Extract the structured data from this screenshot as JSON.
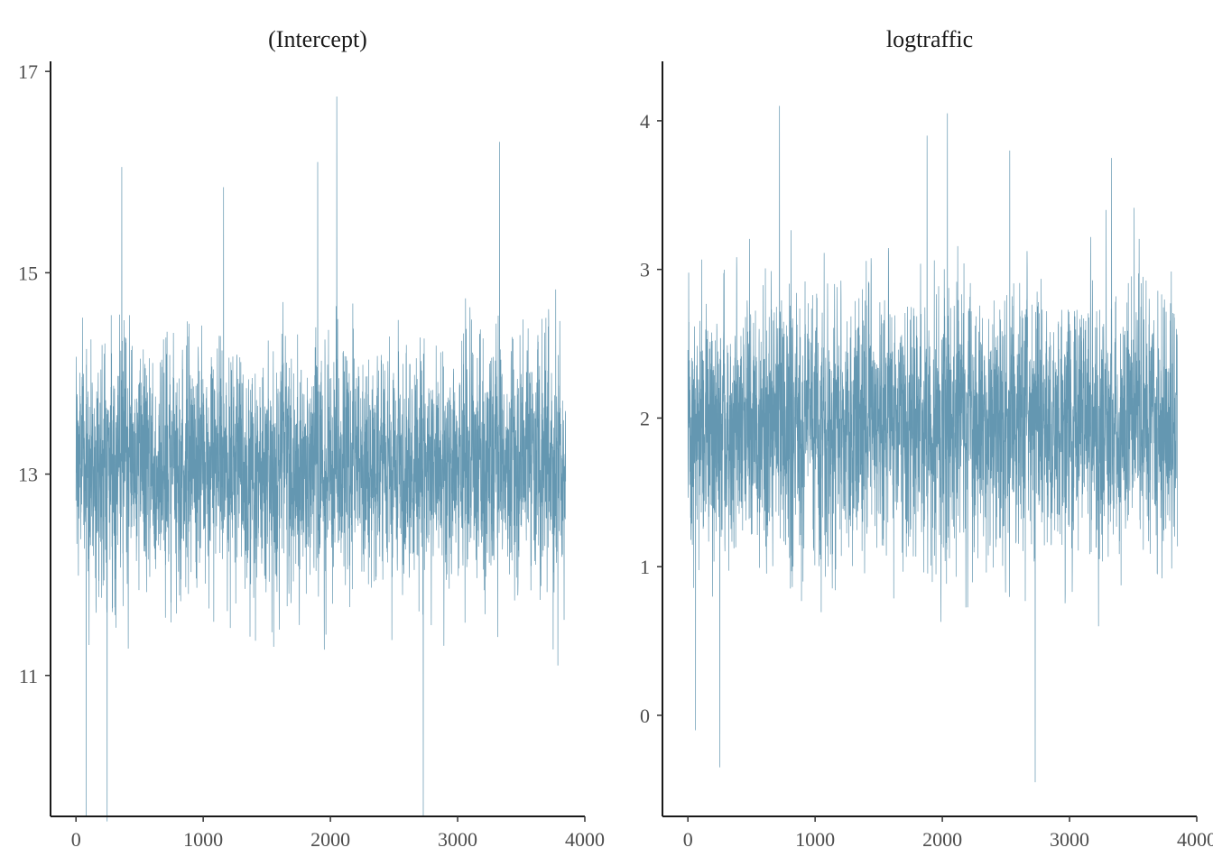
{
  "chart_data": [
    {
      "type": "line",
      "title": "(Intercept)",
      "xlabel": "",
      "ylabel": "",
      "xlim": [
        -200,
        4000
      ],
      "ylim": [
        9.6,
        17.1
      ],
      "x_ticks": [
        0,
        1000,
        2000,
        3000,
        4000
      ],
      "y_ticks": [
        11,
        13,
        15,
        17
      ],
      "n_draws": 3850,
      "trace_center": 13.1,
      "trace_sd": 0.55,
      "trace_min": 9.55,
      "trace_max": 16.75,
      "series": [
        {
          "color": "#6497b1",
          "values": []
        }
      ],
      "grid": false
    },
    {
      "type": "line",
      "title": "logtraffic",
      "xlabel": "",
      "ylabel": "",
      "xlim": [
        -200,
        4000
      ],
      "ylim": [
        -0.68,
        4.4
      ],
      "x_ticks": [
        0,
        1000,
        2000,
        3000,
        4000
      ],
      "y_ticks": [
        0,
        1,
        2,
        3,
        4
      ],
      "n_draws": 3850,
      "trace_center": 1.95,
      "trace_sd": 0.4,
      "trace_min": -0.45,
      "trace_max": 4.1,
      "series": [
        {
          "color": "#6497b1",
          "values": []
        }
      ],
      "grid": false
    }
  ],
  "colors": {
    "trace": "#6497b1",
    "axis": "#1a1a1a",
    "tick_text": "#4d4d4d"
  }
}
